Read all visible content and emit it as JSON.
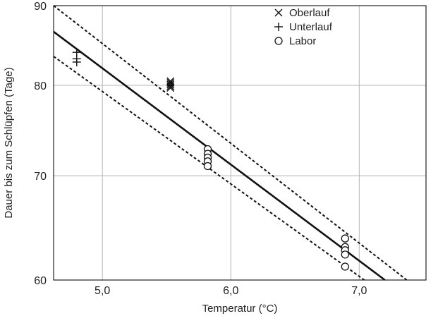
{
  "chart_data": {
    "type": "scatter",
    "title": "",
    "xlabel": "Temperatur (°C)",
    "ylabel": "Dauer bis zum Schlüpfen (Tage)",
    "xlim": [
      4.62,
      7.52
    ],
    "ylim": [
      60,
      90
    ],
    "y_scale": "log",
    "x_ticks": [
      5.0,
      6.0,
      7.0
    ],
    "x_tick_labels": [
      "5,0",
      "6,0",
      "7,0"
    ],
    "y_ticks": [
      60,
      70,
      80,
      90
    ],
    "y_tick_labels": [
      "60",
      "70",
      "80",
      "90"
    ],
    "grid": true,
    "legend_position": "top-right",
    "series": [
      {
        "name": "Oberlauf",
        "marker": "x",
        "points": [
          [
            5.53,
            80.5
          ],
          [
            5.53,
            80.1
          ],
          [
            5.53,
            79.7
          ],
          [
            5.53,
            80.3
          ],
          [
            5.53,
            79.9
          ]
        ]
      },
      {
        "name": "Unterlauf",
        "marker": "plus",
        "points": [
          [
            4.8,
            84.0
          ],
          [
            4.8,
            83.2
          ],
          [
            4.8,
            82.8
          ]
        ]
      },
      {
        "name": "Labor",
        "marker": "circle",
        "points": [
          [
            5.82,
            72.8
          ],
          [
            5.82,
            72.3
          ],
          [
            5.82,
            71.9
          ],
          [
            5.82,
            71.5
          ],
          [
            5.82,
            71.0
          ],
          [
            6.89,
            63.8
          ],
          [
            6.89,
            63.0
          ],
          [
            6.89,
            62.7
          ],
          [
            6.89,
            62.3
          ],
          [
            6.89,
            61.2
          ]
        ]
      }
    ],
    "fit_lines": [
      {
        "style": "solid",
        "points": [
          [
            4.62,
            86.6
          ],
          [
            7.2,
            60.0
          ]
        ]
      },
      {
        "style": "dotted",
        "points": [
          [
            4.62,
            90.0
          ],
          [
            7.37,
            60.0
          ]
        ]
      },
      {
        "style": "dotted",
        "points": [
          [
            4.62,
            83.5
          ],
          [
            7.04,
            60.0
          ]
        ]
      }
    ]
  }
}
